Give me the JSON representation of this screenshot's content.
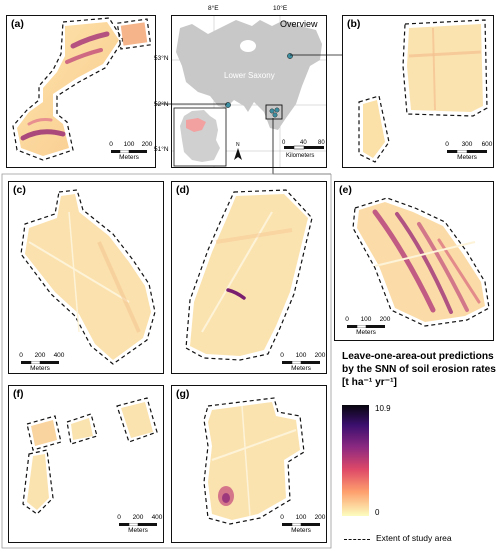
{
  "overview": {
    "title": "Overview",
    "region_label": "Lower Saxony",
    "lon_ticks": [
      "8°E",
      "10°E"
    ],
    "lat_ticks": [
      "53°N",
      "52°N",
      "51°N"
    ],
    "north_symbol": "N",
    "scale_ticks": [
      "0",
      "40",
      "80"
    ],
    "scale_unit": "Kilometers",
    "colors": {
      "lower_saxony": "#c8c8c8",
      "germany": "#d0d0d0",
      "germany_highlight": "#f2a0a0",
      "site": "#3d8ea0"
    }
  },
  "panels": [
    {
      "id": "a",
      "label": "(a)",
      "scale_ticks": [
        "0",
        "100",
        "200"
      ],
      "scale_unit": "Meters"
    },
    {
      "id": "b",
      "label": "(b)",
      "scale_ticks": [
        "0",
        "300",
        "600"
      ],
      "scale_unit": "Meters"
    },
    {
      "id": "c",
      "label": "(c)",
      "scale_ticks": [
        "0",
        "200",
        "400"
      ],
      "scale_unit": "Meters"
    },
    {
      "id": "d",
      "label": "(d)",
      "scale_ticks": [
        "0",
        "100",
        "200"
      ],
      "scale_unit": "Meters"
    },
    {
      "id": "e",
      "label": "(e)",
      "scale_ticks": [
        "0",
        "100",
        "200"
      ],
      "scale_unit": "Meters"
    },
    {
      "id": "f",
      "label": "(f)",
      "scale_ticks": [
        "0",
        "200",
        "400"
      ],
      "scale_unit": "Meters"
    },
    {
      "id": "g",
      "label": "(g)",
      "scale_ticks": [
        "0",
        "100",
        "200"
      ],
      "scale_unit": "Meters"
    }
  ],
  "legend": {
    "title": "Leave-one-area-out predictions by the SNN of soil erosion rates [t ha⁻¹ yr⁻¹]",
    "max_value": "10.9",
    "min_value": "0",
    "colormap": "magma",
    "extent_label": "Extent of study area"
  }
}
